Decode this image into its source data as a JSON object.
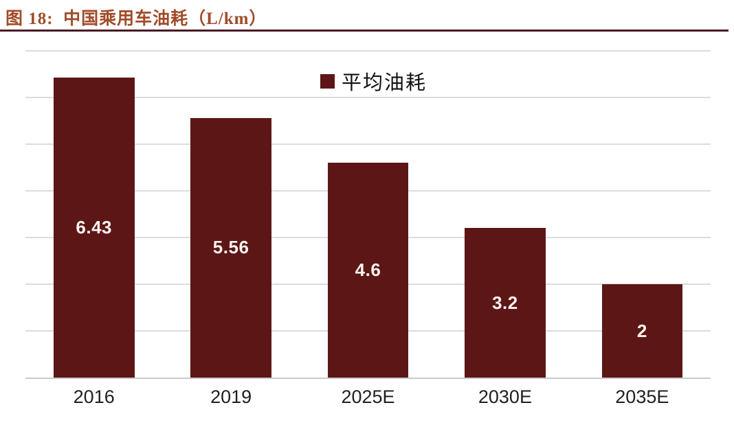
{
  "figure": {
    "full_title": "图 18:  中国乘用车油耗（L/km）",
    "colors": {
      "background": "#FFFFFF",
      "title": "#A04B28",
      "underline": "#4A1A22",
      "bar": "#5D1616",
      "value_label": "#FAF3EF",
      "gridline": "#DCDCDC",
      "axis_line": "#C9C9C9",
      "tick_label": "#1F1F1F",
      "legend_text": "#111111"
    }
  },
  "chart_data": {
    "type": "bar",
    "title": "中国乘用车油耗（L/km）",
    "unit": "L/km",
    "categories": [
      "2016",
      "2019",
      "2025E",
      "2030E",
      "2035E"
    ],
    "series": [
      {
        "name": "平均油耗",
        "values": [
          6.43,
          5.56,
          4.6,
          3.2,
          2
        ]
      }
    ],
    "value_labels": [
      "6.43",
      "5.56",
      "4.6",
      "3.2",
      "2"
    ],
    "xlabel": "",
    "ylabel": "",
    "ylim": [
      0,
      7
    ],
    "gridline_step": 1,
    "grid": "horizontal",
    "y_axis_labels_shown": false,
    "legend": {
      "position": "top-center",
      "items": [
        "平均油耗"
      ]
    }
  }
}
